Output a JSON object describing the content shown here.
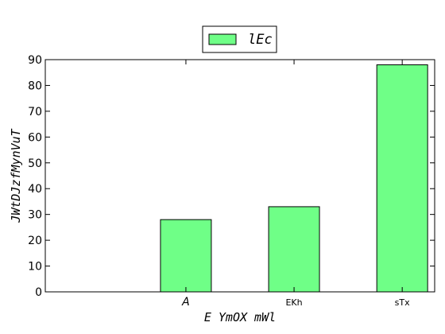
{
  "chart_data": {
    "type": "bar",
    "categories": [
      "A",
      "EKh",
      "sTx"
    ],
    "series": [
      {
        "name": "lEc",
        "values": [
          28,
          33,
          88
        ]
      }
    ],
    "xlabel": "E YmOX mWl",
    "ylabel": "JWtDJzfMynVuT",
    "ylim": [
      0,
      90
    ],
    "yticks": [
      0,
      10,
      20,
      30,
      40,
      50,
      60,
      70,
      80,
      90
    ],
    "grid": false,
    "legend_position": "top-center",
    "colors": {
      "bar_fill": "#6fff87",
      "bar_edge": "#000000",
      "axis": "#000000"
    }
  }
}
